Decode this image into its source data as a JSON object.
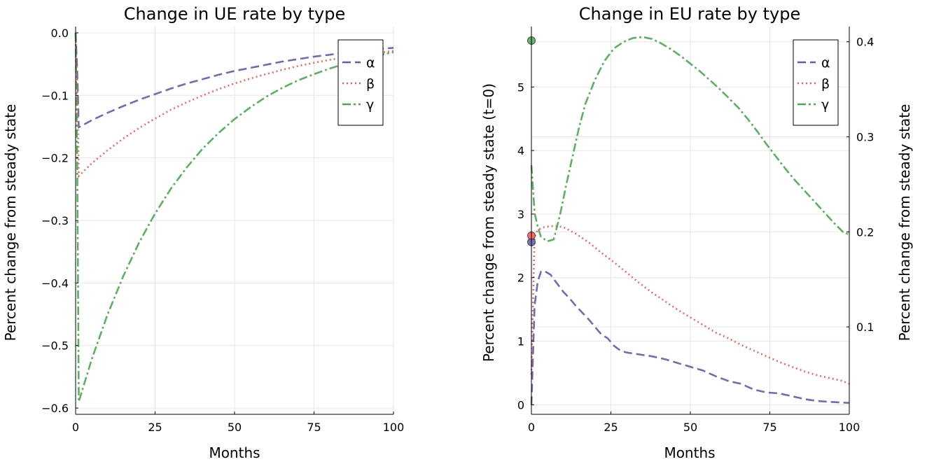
{
  "chart_data": [
    {
      "type": "line",
      "title": "Change in UE rate by type",
      "xlabel": "Months",
      "ylabel": "Percent change from steady state",
      "xlim": [
        0,
        100
      ],
      "ylim": [
        -0.61,
        0.01
      ],
      "xticks": [
        0,
        25,
        50,
        75,
        100
      ],
      "yticks": [
        0.0,
        -0.1,
        -0.2,
        -0.3,
        -0.4,
        -0.5,
        -0.6
      ],
      "ytick_labels": [
        "0.0",
        "−0.1",
        "−0.2",
        "−0.3",
        "−0.4",
        "−0.5",
        "−0.6"
      ],
      "grid": true,
      "legend_position": "top-right",
      "series": [
        {
          "name": "α",
          "color": "#5e5cab",
          "style": "dash",
          "x": [
            0,
            0.5,
            1,
            5,
            10,
            15,
            20,
            25,
            30,
            35,
            40,
            45,
            50,
            55,
            60,
            65,
            70,
            75,
            80,
            85,
            90,
            95,
            100
          ],
          "y": [
            0,
            -0.06,
            -0.151,
            -0.14,
            -0.128,
            -0.117,
            -0.107,
            -0.098,
            -0.089,
            -0.081,
            -0.074,
            -0.067,
            -0.061,
            -0.056,
            -0.051,
            -0.046,
            -0.042,
            -0.038,
            -0.035,
            -0.031,
            -0.028,
            -0.026,
            -0.024
          ]
        },
        {
          "name": "β",
          "color": "#f8524c",
          "style": "dot",
          "x": [
            0,
            0.5,
            1,
            5,
            10,
            15,
            20,
            25,
            30,
            35,
            40,
            45,
            50,
            55,
            60,
            65,
            70,
            75,
            80,
            85,
            90,
            95,
            100
          ],
          "y": [
            0,
            -0.08,
            -0.229,
            -0.209,
            -0.188,
            -0.169,
            -0.152,
            -0.137,
            -0.123,
            -0.111,
            -0.1,
            -0.09,
            -0.081,
            -0.073,
            -0.066,
            -0.059,
            -0.053,
            -0.048,
            -0.043,
            -0.039,
            -0.035,
            -0.032,
            -0.029
          ]
        },
        {
          "name": "γ",
          "color": "#4aa84f",
          "style": "dashdot",
          "x": [
            0,
            0.5,
            1,
            5,
            10,
            15,
            20,
            25,
            30,
            35,
            40,
            45,
            50,
            55,
            60,
            65,
            70,
            75,
            80,
            85,
            90,
            95,
            100
          ],
          "y": [
            0,
            -0.2,
            -0.59,
            -0.523,
            -0.451,
            -0.389,
            -0.335,
            -0.289,
            -0.249,
            -0.215,
            -0.185,
            -0.16,
            -0.138,
            -0.119,
            -0.102,
            -0.088,
            -0.076,
            -0.066,
            -0.057,
            -0.049,
            -0.042,
            -0.036,
            -0.031
          ]
        }
      ]
    },
    {
      "type": "line",
      "title": "Change in EU rate by type",
      "xlabel": "Months",
      "ylabel": "Percent change from steady state (t=0)",
      "y2label": "Percent change from steady state",
      "xlim": [
        0,
        100
      ],
      "ylim": [
        -0.15,
        5.95
      ],
      "y2lim": [
        0.008,
        0.416
      ],
      "xticks": [
        0,
        25,
        50,
        75,
        100
      ],
      "yticks": [
        0,
        1,
        2,
        3,
        4,
        5
      ],
      "y2ticks": [
        0.1,
        0.2,
        0.3,
        0.4
      ],
      "grid": true,
      "legend_position": "top-right",
      "initial_points": [
        {
          "series": "α",
          "x": 0,
          "y": 2.56
        },
        {
          "series": "β",
          "x": 0,
          "y": 2.66
        },
        {
          "series": "γ",
          "x": 0,
          "y": 5.73
        }
      ],
      "series": [
        {
          "name": "α",
          "color": "#5e5cab",
          "style": "dash",
          "axis": "right",
          "x": [
            0,
            1,
            2,
            3,
            4,
            5,
            6,
            8,
            10,
            12,
            14,
            16,
            18,
            20,
            22,
            24,
            26,
            28,
            30,
            34,
            38,
            42,
            46,
            50,
            54,
            58,
            62,
            66,
            70,
            74,
            78,
            82,
            86,
            90,
            94,
            100
          ],
          "y": [
            0.018,
            0.122,
            0.148,
            0.158,
            0.159,
            0.157,
            0.155,
            0.146,
            0.137,
            0.13,
            0.122,
            0.115,
            0.108,
            0.1,
            0.092,
            0.088,
            0.08,
            0.075,
            0.073,
            0.071,
            0.069,
            0.066,
            0.062,
            0.058,
            0.054,
            0.048,
            0.043,
            0.04,
            0.034,
            0.031,
            0.03,
            0.027,
            0.024,
            0.022,
            0.021,
            0.02
          ]
        },
        {
          "name": "β",
          "color": "#f8524c",
          "style": "dot",
          "axis": "right",
          "x": [
            0,
            1,
            2,
            4,
            6,
            8,
            10,
            14,
            18,
            22,
            26,
            30,
            34,
            38,
            42,
            46,
            50,
            54,
            58,
            62,
            66,
            70,
            74,
            78,
            82,
            86,
            90,
            94,
            98,
            100
          ],
          "y": [
            0.05,
            0.195,
            0.202,
            0.205,
            0.206,
            0.206,
            0.205,
            0.198,
            0.189,
            0.178,
            0.168,
            0.157,
            0.146,
            0.136,
            0.127,
            0.118,
            0.11,
            0.102,
            0.094,
            0.088,
            0.081,
            0.075,
            0.069,
            0.063,
            0.058,
            0.053,
            0.049,
            0.046,
            0.043,
            0.04
          ]
        },
        {
          "name": "γ",
          "color": "#4aa84f",
          "style": "dashdot",
          "axis": "right",
          "x": [
            0,
            1,
            2,
            3,
            5,
            7,
            9,
            11,
            13,
            15,
            17,
            20,
            23,
            26,
            29,
            32,
            35,
            38,
            41,
            44,
            47,
            50,
            53,
            56,
            59,
            62,
            65,
            68,
            71,
            74,
            77,
            80,
            83,
            86,
            89,
            92,
            95,
            98,
            100
          ],
          "y": [
            0.27,
            0.22,
            0.205,
            0.195,
            0.19,
            0.192,
            0.218,
            0.25,
            0.28,
            0.31,
            0.335,
            0.36,
            0.38,
            0.393,
            0.4,
            0.404,
            0.405,
            0.403,
            0.398,
            0.392,
            0.385,
            0.377,
            0.369,
            0.36,
            0.351,
            0.341,
            0.331,
            0.319,
            0.306,
            0.292,
            0.279,
            0.266,
            0.254,
            0.243,
            0.232,
            0.221,
            0.21,
            0.2,
            0.197
          ]
        }
      ]
    }
  ]
}
